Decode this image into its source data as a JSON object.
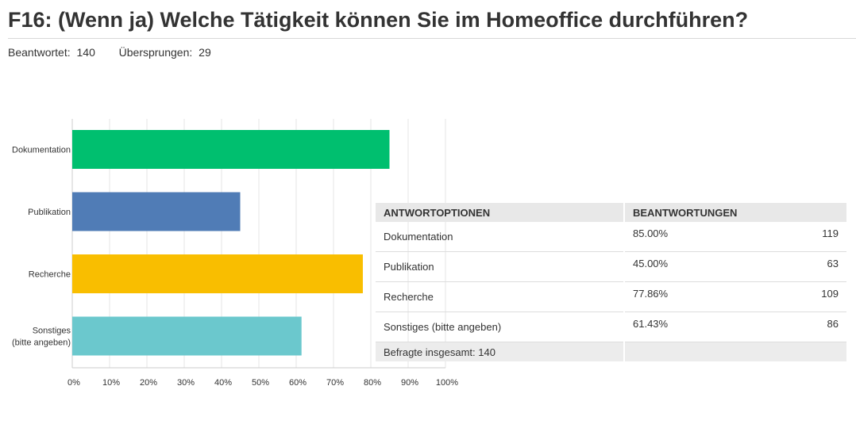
{
  "header": {
    "title": "F16: (Wenn ja) Welche Tätigkeit können Sie im Homeoffice durchführen?",
    "answered_label": "Beantwortet:",
    "answered_value": "140",
    "skipped_label": "Übersprungen:",
    "skipped_value": "29"
  },
  "chart_data": {
    "type": "bar",
    "orientation": "horizontal",
    "categories": [
      "Dokumentation",
      "Publikation",
      "Recherche",
      "Sonstiges (bitte angeben)"
    ],
    "category_lines": [
      [
        "Dokumentation"
      ],
      [
        "Publikation"
      ],
      [
        "Recherche"
      ],
      [
        "Sonstiges",
        "(bitte angeben)"
      ]
    ],
    "values": [
      85.0,
      45.0,
      77.86,
      61.43
    ],
    "colors": [
      "#00bf6f",
      "#507cb6",
      "#f9be00",
      "#6bc8cd"
    ],
    "xlim": [
      0,
      100
    ],
    "xticks": [
      "0%",
      "10%",
      "20%",
      "30%",
      "40%",
      "50%",
      "60%",
      "70%",
      "80%",
      "90%",
      "100%"
    ],
    "grid": true
  },
  "table": {
    "headers": [
      "ANTWORTOPTIONEN",
      "BEANTWORTUNGEN"
    ],
    "rows": [
      {
        "option": "Dokumentation",
        "percent": "85.00%",
        "count": "119"
      },
      {
        "option": "Publikation",
        "percent": "45.00%",
        "count": "63"
      },
      {
        "option": "Recherche",
        "percent": "77.86%",
        "count": "109"
      },
      {
        "option": "Sonstiges (bitte angeben)",
        "percent": "61.43%",
        "count": "86"
      }
    ],
    "total": "Befragte insgesamt: 140"
  }
}
